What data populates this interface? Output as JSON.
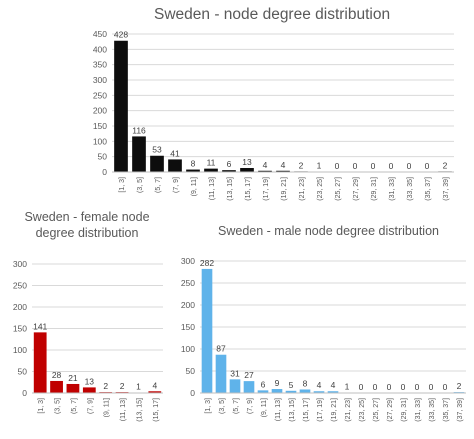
{
  "chart_data": [
    {
      "type": "bar",
      "title": "Sweden - node degree distribution",
      "categories": [
        "[1, 3]",
        "(3, 5]",
        "(5, 7]",
        "(7, 9]",
        "(9, 11]",
        "(11, 13]",
        "(13, 15]",
        "(15, 17]",
        "(17, 19]",
        "(19, 21]",
        "(21, 23]",
        "(23, 25]",
        "(25, 27]",
        "(27, 29]",
        "(29, 31]",
        "(31, 33]",
        "(33, 35]",
        "(35, 37]",
        "(37, 39]"
      ],
      "values": [
        428,
        116,
        53,
        41,
        8,
        11,
        6,
        13,
        4,
        4,
        2,
        1,
        0,
        0,
        0,
        0,
        0,
        0,
        2
      ],
      "yticks": [
        "0",
        "50",
        "100",
        "150",
        "200",
        "250",
        "300",
        "350",
        "400",
        "450"
      ],
      "ylim": [
        0,
        450
      ],
      "color": "#0d0d0d",
      "grid": true
    },
    {
      "type": "bar",
      "title": "Sweden - female node degree distribution",
      "categories": [
        "[1, 3]",
        "(3, 5]",
        "(5, 7]",
        "(7, 9]",
        "(9, 11]",
        "(11, 13]",
        "(13, 15]",
        "(15, 17]"
      ],
      "values": [
        141,
        28,
        21,
        13,
        2,
        2,
        1,
        4
      ],
      "yticks": [
        "0",
        "50",
        "100",
        "150",
        "200",
        "250",
        "300"
      ],
      "ylim": [
        0,
        300
      ],
      "color": "#c00000",
      "grid": true
    },
    {
      "type": "bar",
      "title": "Sweden - male node degree distribution",
      "categories": [
        "[1, 3]",
        "(3, 5]",
        "(5, 7]",
        "(7, 9]",
        "(9, 11]",
        "(11, 13]",
        "(13, 15]",
        "(15, 17]",
        "(17, 19]",
        "(19, 21]",
        "(21, 23]",
        "(23, 25]",
        "(25, 27]",
        "(27, 29]",
        "(29, 31]",
        "(31, 33]",
        "(33, 35]",
        "(35, 37]",
        "(37, 39]"
      ],
      "values": [
        282,
        87,
        31,
        27,
        6,
        9,
        5,
        8,
        4,
        4,
        1,
        0,
        0,
        0,
        0,
        0,
        0,
        0,
        2
      ],
      "yticks": [
        "0",
        "50",
        "100",
        "150",
        "200",
        "250",
        "300"
      ],
      "ylim": [
        0,
        300
      ],
      "color": "#5fb3ea",
      "grid": true
    }
  ]
}
